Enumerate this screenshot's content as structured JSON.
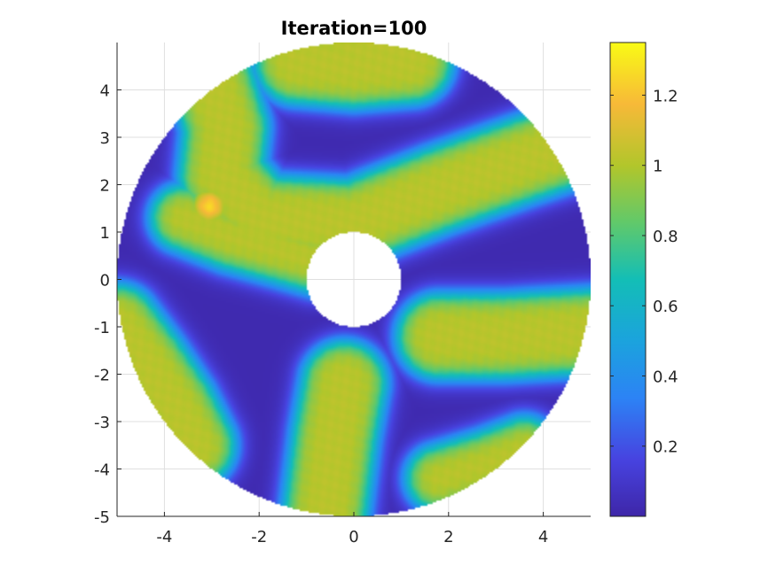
{
  "chart_data": {
    "type": "heatmap",
    "title": "Iteration=100",
    "xlabel": "",
    "ylabel": "",
    "xlim": [
      -5,
      5
    ],
    "ylim": [
      -5,
      5
    ],
    "xticks": [
      -4,
      -2,
      0,
      2,
      4
    ],
    "yticks": [
      -5,
      -4,
      -3,
      -2,
      -1,
      0,
      1,
      2,
      3,
      4
    ],
    "x_tick_labels": [
      "-4",
      "-2",
      "0",
      "2",
      "4"
    ],
    "y_tick_labels": [
      "-5",
      "-4",
      "-3",
      "-2",
      "-1",
      "0",
      "1",
      "2",
      "3",
      "4"
    ],
    "grid": true,
    "domain": {
      "shape": "annulus",
      "inner_radius": 1,
      "outer_radius": 5,
      "center": [
        0,
        0
      ]
    },
    "colorbar": {
      "colormap": "parula",
      "range": [
        0,
        1.35
      ],
      "ticks": [
        0.2,
        0.4,
        0.6,
        0.8,
        1,
        1.2
      ],
      "tick_labels": [
        "0.2",
        "0.4",
        "0.6",
        "0.8",
        "1",
        "1.2"
      ],
      "position": "right"
    },
    "high_regions": [
      {
        "label": "top",
        "points": [
          [
            -1.2,
            4.6
          ],
          [
            0,
            4.5
          ],
          [
            1.2,
            4.6
          ],
          [
            0,
            5
          ]
        ],
        "width": 0.9,
        "value": 1.02
      },
      {
        "label": "upper-left",
        "points": [
          [
            -3.0,
            4.2
          ],
          [
            -2.7,
            3.2
          ],
          [
            -2.8,
            2.2
          ],
          [
            -2.0,
            1.3
          ],
          [
            0,
            1.2
          ],
          [
            1.8,
            1.9
          ],
          [
            3.5,
            2.5
          ],
          [
            5,
            3.0
          ]
        ],
        "width": 0.9,
        "value": 1.02
      },
      {
        "label": "peak",
        "points": [
          [
            -3.05,
            1.55
          ]
        ],
        "width": 0.45,
        "value": 1.3
      },
      {
        "label": "left-arm",
        "points": [
          [
            -3.6,
            1.3
          ],
          [
            -2.6,
            0.9
          ],
          [
            -1.5,
            0.6
          ],
          [
            -0.8,
            0.4
          ]
        ],
        "width": 0.7,
        "value": 1.02
      },
      {
        "label": "left-lower",
        "points": [
          [
            -5,
            -1.0
          ],
          [
            -4.4,
            -1.8
          ],
          [
            -3.8,
            -2.7
          ],
          [
            -3.4,
            -3.5
          ]
        ],
        "width": 0.9,
        "value": 1.02
      },
      {
        "label": "bottom-center",
        "points": [
          [
            -0.2,
            -2.2
          ],
          [
            -0.4,
            -3.3
          ],
          [
            -0.6,
            -4.9
          ]
        ],
        "width": 0.9,
        "value": 1.02
      },
      {
        "label": "right",
        "points": [
          [
            1.8,
            -1.2
          ],
          [
            3.2,
            -1.2
          ],
          [
            5,
            -1.1
          ]
        ],
        "width": 0.9,
        "value": 1.02
      },
      {
        "label": "bottom-right",
        "points": [
          [
            1.8,
            -4.2
          ],
          [
            2.8,
            -3.9
          ],
          [
            3.6,
            -3.6
          ]
        ],
        "width": 0.7,
        "value": 1.02
      }
    ],
    "background_value": 0.02
  }
}
